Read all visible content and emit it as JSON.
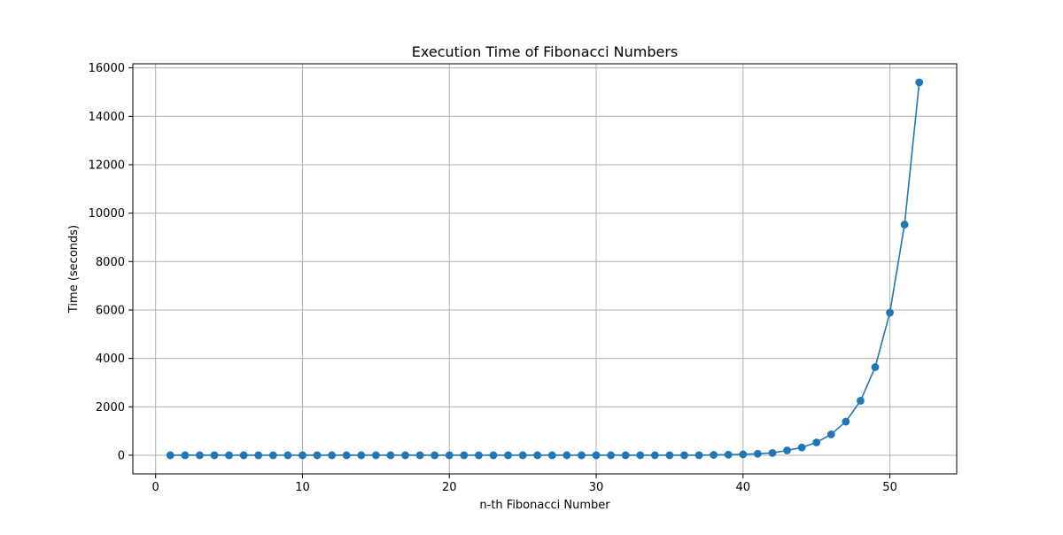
{
  "chart_data": {
    "type": "line",
    "title": "Execution Time of Fibonacci Numbers",
    "xlabel": "n-th Fibonacci Number",
    "ylabel": "Time (seconds)",
    "xlim": [
      -1.55,
      54.55
    ],
    "ylim": [
      -770,
      16170
    ],
    "xticks": [
      0,
      10,
      20,
      30,
      40,
      50
    ],
    "yticks": [
      0,
      2000,
      4000,
      6000,
      8000,
      10000,
      12000,
      14000,
      16000
    ],
    "grid": true,
    "marker": "circle",
    "colors": {
      "series": "#1f77b4",
      "grid": "#b0b0b0",
      "axes": "#000000"
    },
    "series": [
      {
        "x": [
          1,
          2,
          3,
          4,
          5,
          6,
          7,
          8,
          9,
          10,
          11,
          12,
          13,
          14,
          15,
          16,
          17,
          18,
          19,
          20,
          21,
          22,
          23,
          24,
          25,
          26,
          27,
          28,
          29,
          30,
          31,
          32,
          33,
          34,
          35,
          36,
          37,
          38,
          39,
          40,
          41,
          42,
          43,
          44,
          45,
          46,
          47,
          48,
          49,
          50,
          51,
          52
        ],
        "y": [
          0,
          0,
          0,
          0,
          0,
          0,
          0,
          0,
          0,
          0,
          0,
          0,
          0,
          0,
          0,
          0,
          0,
          0,
          0,
          0,
          0,
          0,
          0,
          0,
          0,
          0,
          0,
          0,
          0,
          0,
          0,
          0,
          0.2,
          0.3,
          0.5,
          1,
          2,
          14,
          23,
          37,
          60,
          95,
          200,
          320,
          530,
          860,
          1390,
          2250,
          3640,
          5890,
          9530,
          15400
        ]
      }
    ]
  }
}
